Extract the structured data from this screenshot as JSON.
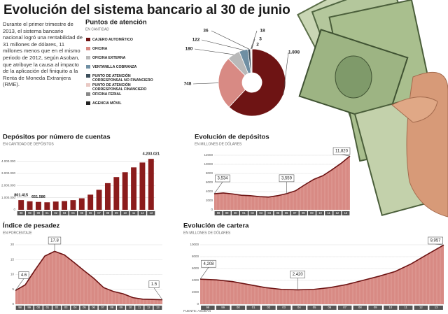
{
  "header": {
    "title": "Evolución del sistema bancario al 30 de junio",
    "intro": "Durante el primer trimestre de 2013, el sistema bancario nacional logró una rentabilidad de 31 millones de dólares, 11 millones menos que en el mismo periodo de 2012, según Asoban, que atribuye la causa al impacto de la aplicación del finiquito a la Renta de Moneda Extranjera (RME).",
    "source": "FUENTE: ASOBAN"
  },
  "chart_data": [
    {
      "type": "pie",
      "title": "Puntos de atención",
      "subtitle": "EN CANTIDAD",
      "categories": [
        "CAJERO AUTOMÁTICO",
        "OFICINA",
        "OFICINA EXTERNA",
        "VENTANILLA COBRANZA",
        "PUNTO DE ATENCIÓN CORRESPONSAL NO FINANCIERO",
        "PUNTO DE ATENCIÓN CORRESPONSAL FINANCIERO",
        "OFICINA FERIAL",
        "AGENCIA MÓVIL"
      ],
      "values": [
        1808,
        748,
        180,
        122,
        36,
        18,
        3,
        2
      ],
      "value_labels": [
        "1.808",
        "748",
        "180",
        "122",
        "36",
        "18",
        "3",
        "2"
      ],
      "colors": [
        "#6e1414",
        "#d88a84",
        "#b9b9b9",
        "#6f8fa3",
        "#3d4f5c",
        "#e9c9c4",
        "#888888",
        "#222222"
      ]
    },
    {
      "type": "bar",
      "title": "Depósitos por número de cuentas",
      "subtitle": "EN CANTIDAD DE DEPÓSITOS",
      "categories": [
        "98",
        "99",
        "00",
        "01",
        "02",
        "03",
        "04",
        "05",
        "06",
        "07",
        "08",
        "09",
        "10",
        "11",
        "12",
        "13"
      ],
      "values": [
        801415,
        700000,
        651586,
        620000,
        680000,
        720000,
        800000,
        950000,
        1250000,
        1650000,
        2200000,
        2700000,
        3100000,
        3500000,
        3900000,
        4203021
      ],
      "value_labels": [
        "801.415",
        null,
        "651.586",
        null,
        null,
        null,
        null,
        null,
        null,
        null,
        null,
        null,
        null,
        null,
        null,
        "4.203.021"
      ],
      "color": "#8b1c1c",
      "ylim": [
        0,
        4500000
      ],
      "yticks": [
        0,
        {
          "value": 1000000,
          "label": "1.000.000"
        },
        {
          "value": 2000000,
          "label": "2.000.000"
        },
        {
          "value": 3000000,
          "label": "3.000.000"
        },
        {
          "value": 4000000,
          "label": "4.000.000"
        }
      ],
      "grid": true
    },
    {
      "type": "area",
      "title": "Evolución de depósitos",
      "subtitle": "EN MILLONES DE DÓLARES",
      "categories": [
        "98",
        "99",
        "00",
        "01",
        "02",
        "03",
        "04",
        "05",
        "06",
        "07",
        "08",
        "09",
        "10",
        "11",
        "12",
        "13"
      ],
      "values": [
        3534,
        3700,
        3500,
        3200,
        3100,
        2900,
        2800,
        3100,
        3559,
        4200,
        5500,
        6700,
        7500,
        8800,
        10200,
        11820
      ],
      "value_labels": [
        "3,534",
        null,
        null,
        null,
        null,
        null,
        null,
        null,
        "3,559",
        null,
        null,
        null,
        null,
        null,
        null,
        "11,820"
      ],
      "color": "#d88a84",
      "line_color": "#6e1414",
      "ylim": [
        0,
        12000
      ],
      "yticks": [
        0,
        2000,
        4000,
        6000,
        8000,
        10000,
        12000
      ],
      "grid": true
    },
    {
      "type": "area",
      "title": "Índice de pesadez",
      "subtitle": "EN PORCENTAJE",
      "categories": [
        "98",
        "99",
        "00",
        "01",
        "02",
        "03",
        "04",
        "05",
        "06",
        "07",
        "08",
        "09",
        "10",
        "11",
        "12",
        "13"
      ],
      "values": [
        4.6,
        6.5,
        11.5,
        16.2,
        17.8,
        16.6,
        14.0,
        11.3,
        8.7,
        5.6,
        4.3,
        3.5,
        2.2,
        1.7,
        1.6,
        1.5
      ],
      "value_labels": [
        "4.6",
        null,
        null,
        null,
        "17.8",
        null,
        null,
        null,
        null,
        null,
        null,
        null,
        null,
        null,
        null,
        "1.5"
      ],
      "color": "#d88a84",
      "line_color": "#6e1414",
      "ylim": [
        0,
        20
      ],
      "yticks": [
        0,
        5,
        10,
        15,
        20
      ],
      "grid": true
    },
    {
      "type": "area",
      "title": "Evolución de cartera",
      "subtitle": "EN MILLONES DE DÓLARES",
      "categories": [
        "98",
        "99",
        "00",
        "01",
        "02",
        "03",
        "04",
        "05",
        "06",
        "07",
        "08",
        "09",
        "10",
        "11",
        "12",
        "13"
      ],
      "values": [
        4208,
        4100,
        3800,
        3300,
        2800,
        2500,
        2420,
        2500,
        2800,
        3300,
        4000,
        4700,
        5500,
        6800,
        8400,
        9957
      ],
      "value_labels": [
        "4,208",
        null,
        null,
        null,
        null,
        null,
        "2,420",
        null,
        null,
        null,
        null,
        null,
        null,
        null,
        null,
        "9,957"
      ],
      "color": "#d88a84",
      "line_color": "#6e1414",
      "ylim": [
        0,
        10000
      ],
      "yticks": [
        0,
        2000,
        4000,
        6000,
        8000,
        10000
      ],
      "grid": true
    }
  ]
}
